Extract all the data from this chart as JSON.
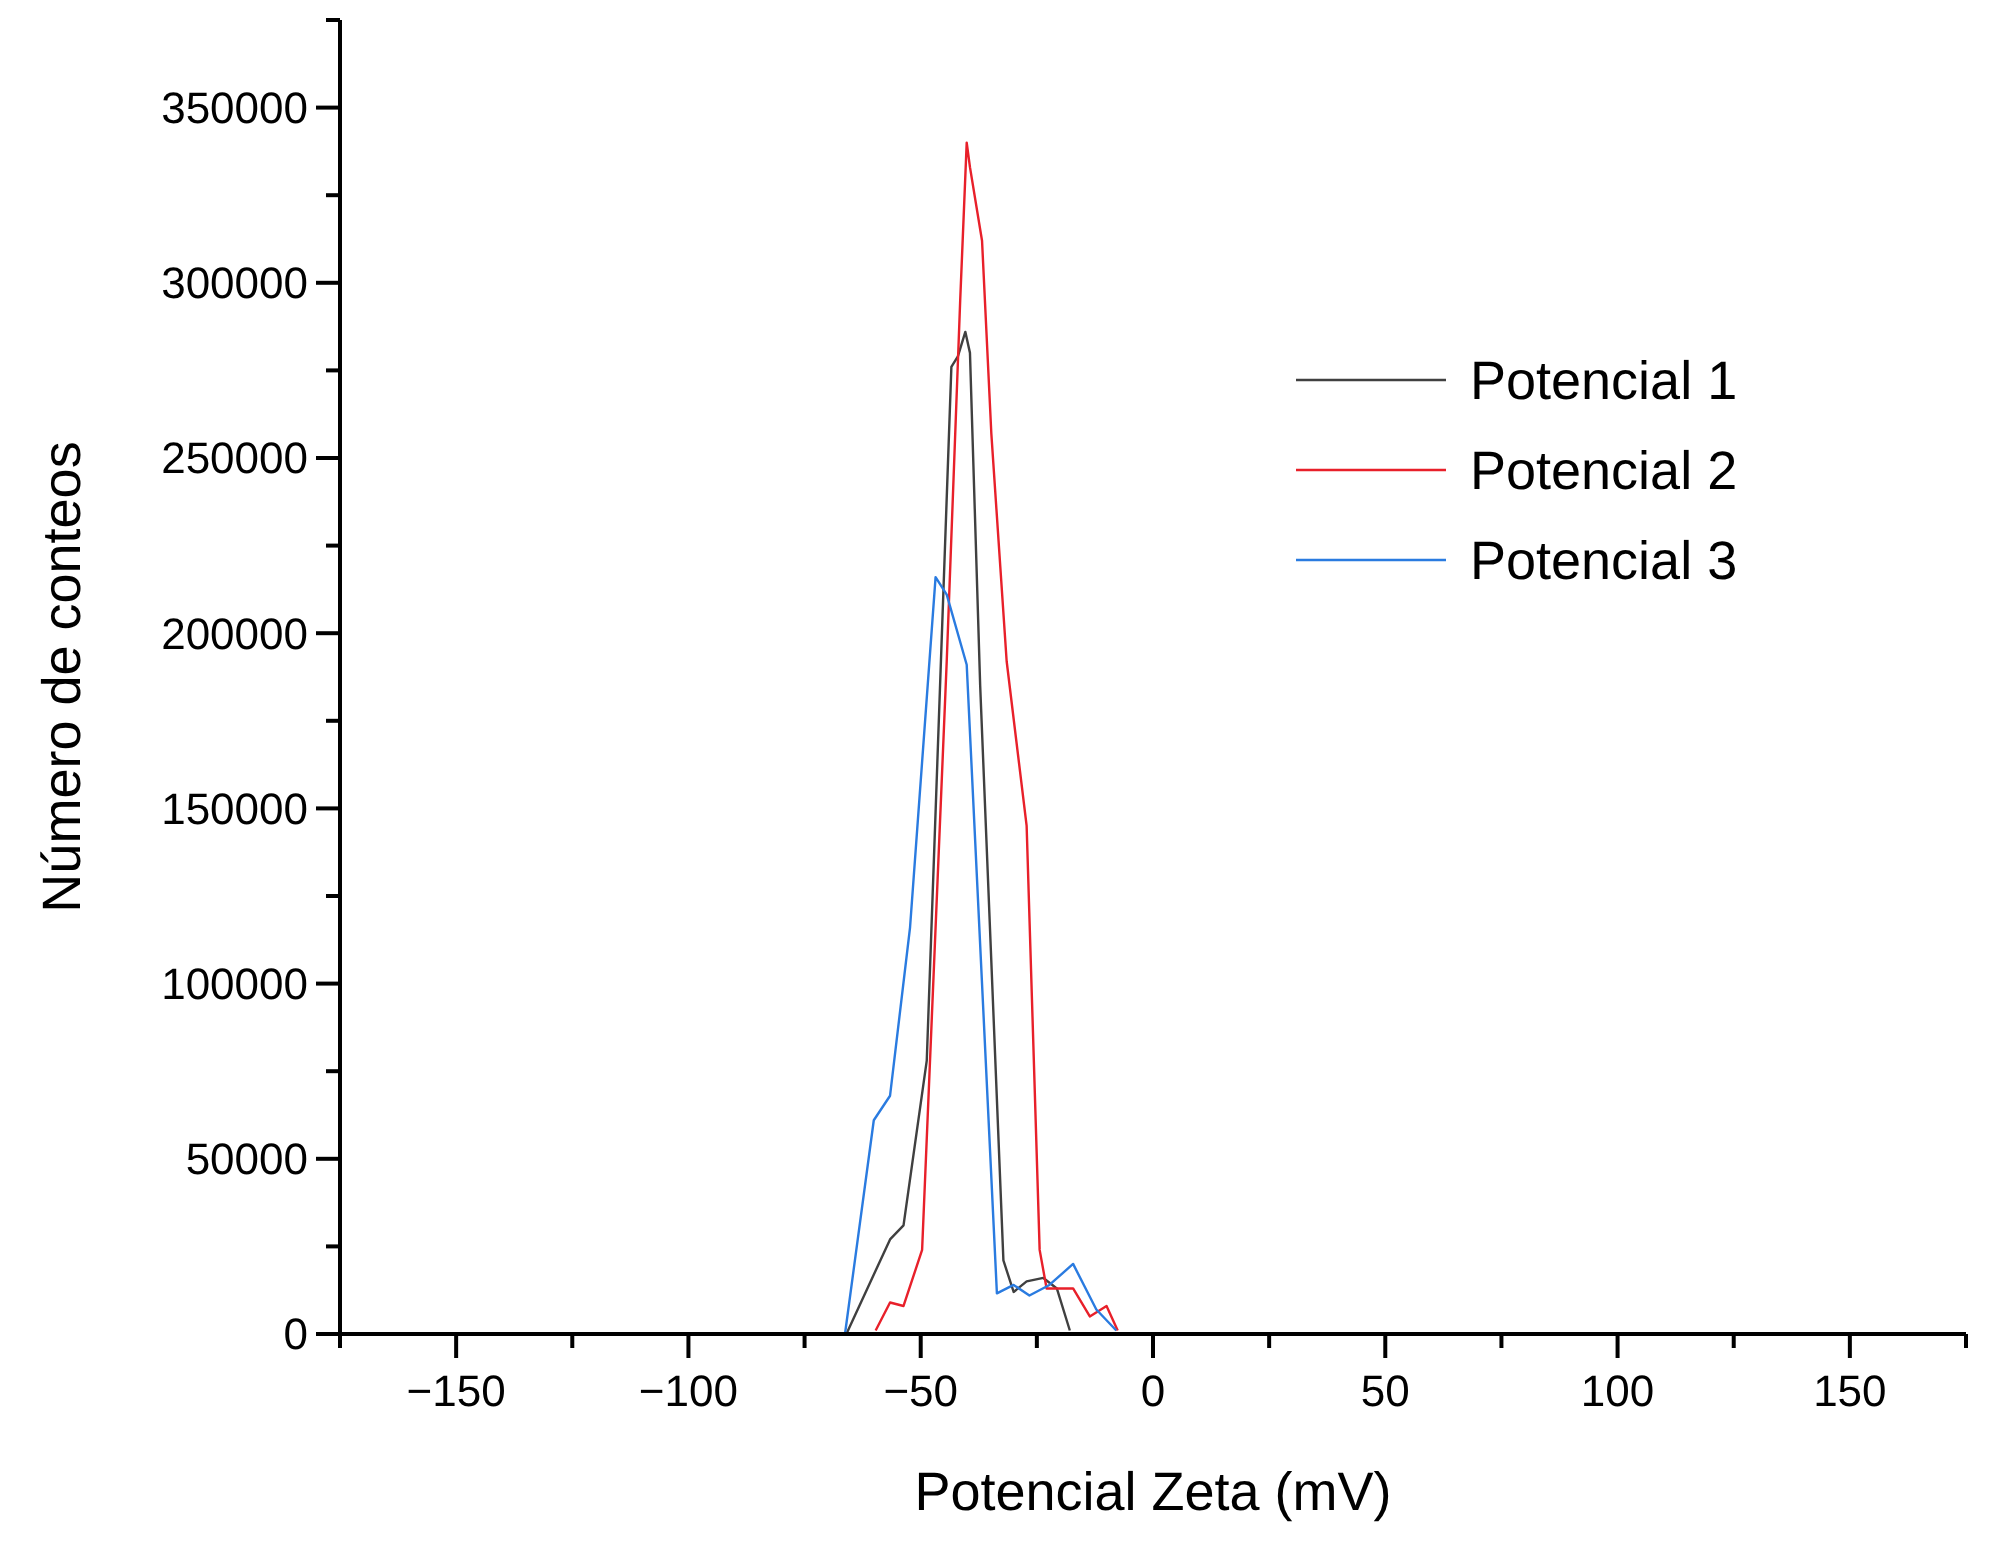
{
  "chart_data": {
    "type": "line",
    "xlabel": "Potencial Zeta (mV)",
    "ylabel": "Número de conteos",
    "legend": "top right",
    "grid": false,
    "xlim": [
      -175,
      175
    ],
    "xticks": [
      {
        "value": -175,
        "label": null
      },
      {
        "value": -150,
        "label": "−150"
      },
      {
        "value": -125,
        "label": null
      },
      {
        "value": -100,
        "label": "−100"
      },
      {
        "value": -75,
        "label": null
      },
      {
        "value": -50,
        "label": "−50"
      },
      {
        "value": -25,
        "label": null
      },
      0,
      {
        "value": 25,
        "label": null
      },
      50,
      {
        "value": 75,
        "label": null
      },
      100,
      {
        "value": 125,
        "label": null
      },
      150,
      {
        "value": 175,
        "label": null
      }
    ],
    "ylim": [
      0,
      375000
    ],
    "yticks": [
      0,
      {
        "value": 25000,
        "label": null
      },
      50000,
      {
        "value": 75000,
        "label": null
      },
      100000,
      {
        "value": 125000,
        "label": null
      },
      150000,
      {
        "value": 175000,
        "label": null
      },
      200000,
      {
        "value": 225000,
        "label": null
      },
      250000,
      {
        "value": 275000,
        "label": null
      },
      300000,
      {
        "value": 325000,
        "label": null
      },
      350000,
      {
        "value": 375000,
        "label": null
      }
    ],
    "series": [
      {
        "name": "Potencial 1",
        "color": "#404040",
        "x": [
          -66,
          -56.6,
          -53.7,
          -48.7,
          -43.4,
          -42,
          -40.4,
          -39.4,
          -37.2,
          -32.2,
          -30,
          -27.2,
          -23.6,
          -20.7,
          -17.9
        ],
        "values": [
          0,
          27000,
          31000,
          78000,
          276000,
          279000,
          286000,
          280000,
          185000,
          21000,
          12000,
          15000,
          16000,
          13000,
          1000
        ]
      },
      {
        "name": "Potencial 2",
        "color": "#e8202a",
        "x": [
          -59.7,
          -56.6,
          -53.7,
          -49.7,
          -44.4,
          -41.5,
          -40.1,
          -39.4,
          -36.8,
          -34.8,
          -31.5,
          -27.2,
          -24.4,
          -22.9,
          -17.2,
          -13.6,
          -10,
          -7.6
        ],
        "values": [
          1000,
          9000,
          8000,
          24000,
          192000,
          295000,
          340000,
          333000,
          312000,
          257000,
          192000,
          145000,
          24000,
          13000,
          13000,
          5000,
          8000,
          1000
        ]
      },
      {
        "name": "Potencial 3",
        "color": "#2a7be0",
        "x": [
          -66.3,
          -60.1,
          -56.6,
          -52.3,
          -46.8,
          -44.4,
          -40.1,
          -33.6,
          -30,
          -26.6,
          -22.3,
          -17.2,
          -12.2,
          -7.9
        ],
        "values": [
          0,
          61000,
          68000,
          116000,
          216000,
          211000,
          191000,
          11600,
          14000,
          11000,
          14000,
          20000,
          7000,
          1000
        ]
      }
    ]
  }
}
